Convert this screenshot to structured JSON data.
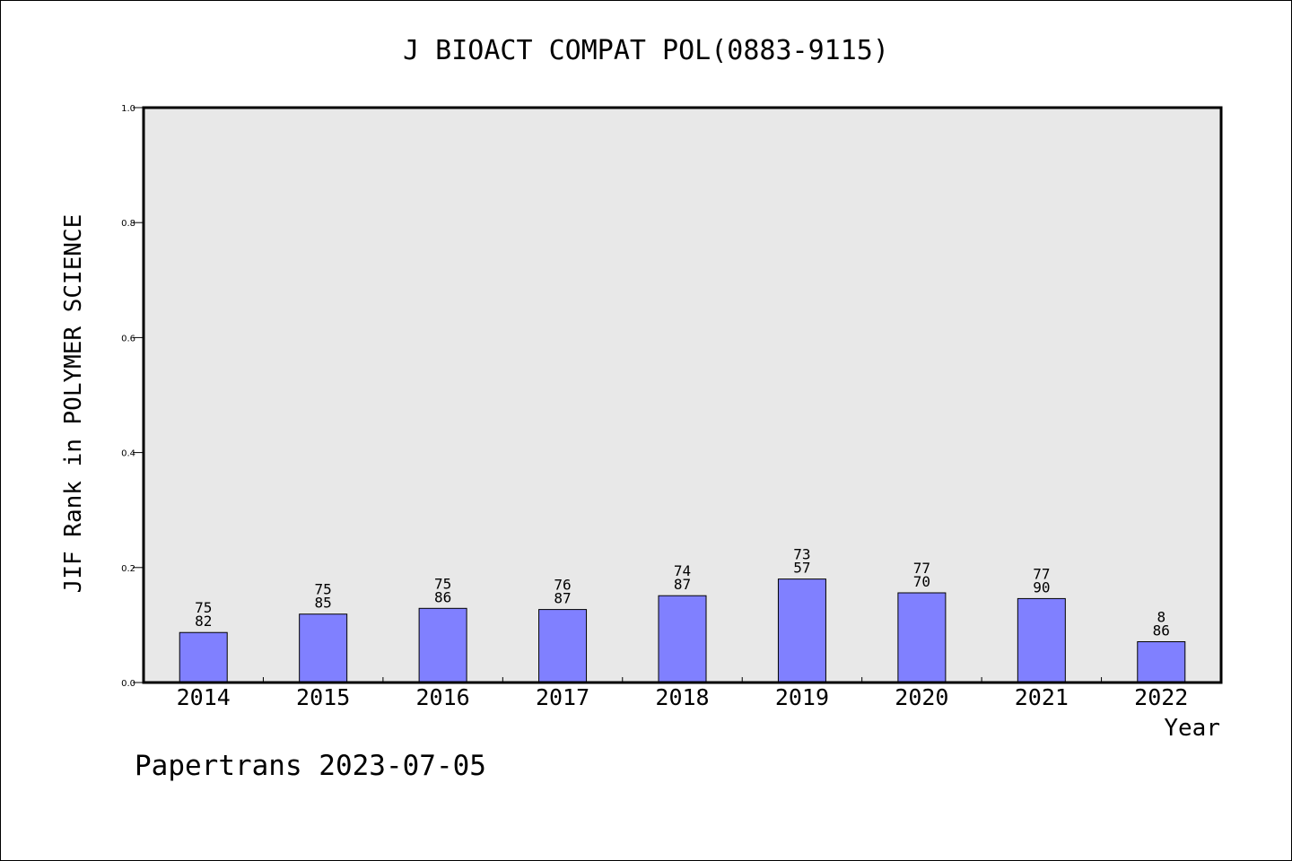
{
  "chart_data": {
    "type": "bar",
    "title": "J BIOACT COMPAT POL(0883-9115)",
    "xlabel": "Year",
    "ylabel": "JIF Rank in POLYMER SCIENCE",
    "ylim": [
      0,
      1.0
    ],
    "yticks": [
      "0.0",
      "0.2",
      "0.4",
      "0.6",
      "0.8",
      "1.0"
    ],
    "categories": [
      "2014",
      "2015",
      "2016",
      "2017",
      "2018",
      "2019",
      "2020",
      "2021",
      "2022"
    ],
    "values": [
      0.087,
      0.119,
      0.129,
      0.127,
      0.151,
      0.18,
      0.156,
      0.146,
      0.071
    ],
    "bar_labels": [
      {
        "top": "75",
        "bottom": "82"
      },
      {
        "top": "75",
        "bottom": "85"
      },
      {
        "top": "75",
        "bottom": "86"
      },
      {
        "top": "76",
        "bottom": "87"
      },
      {
        "top": "74",
        "bottom": "87"
      },
      {
        "top": "73",
        "bottom": "57"
      },
      {
        "top": "77",
        "bottom": "70"
      },
      {
        "top": "77",
        "bottom": "90"
      },
      {
        "top": "8",
        "bottom": "86"
      }
    ],
    "grid": false,
    "bar_color": "#8080ff",
    "plot_background": "#e8e8e8"
  },
  "footer": {
    "credit": "Papertrans 2023-07-05"
  }
}
